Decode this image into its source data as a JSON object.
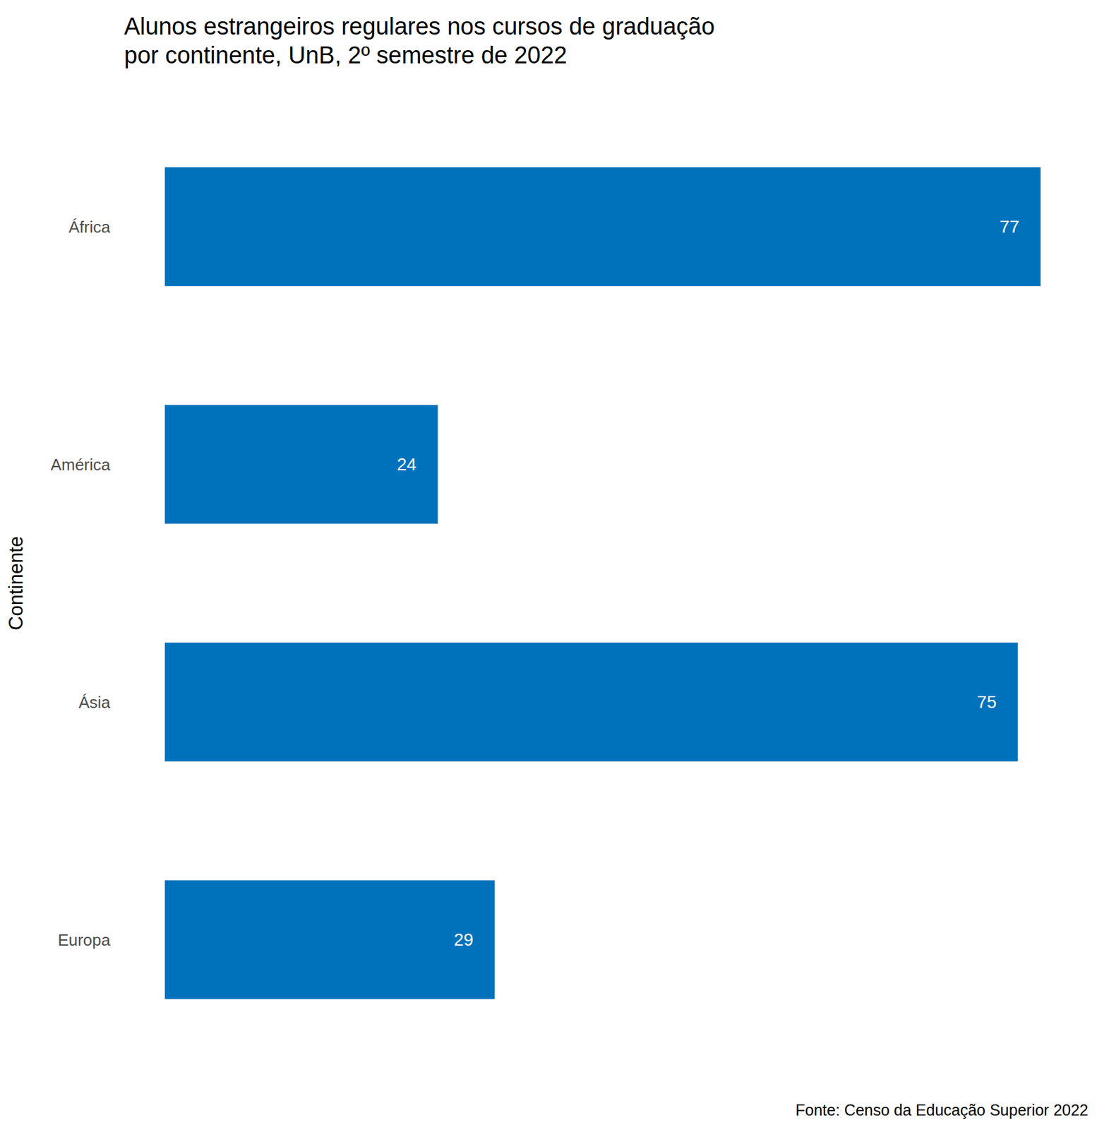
{
  "chart_data": {
    "type": "bar",
    "title": "Alunos estrangeiros regulares nos cursos de graduação\npor continente, UnB, 2º semestre de 2022",
    "y_label": "Continente",
    "caption": "Fonte: Censo da Educação Superior 2022",
    "categories": [
      "África",
      "América",
      "Ásia",
      "Europa"
    ],
    "values": [
      77,
      24,
      75,
      29
    ],
    "color": "#0072bc",
    "orientation": "horizontal",
    "xlim": [
      0,
      77
    ],
    "data_labels": true,
    "tick_labels": "y",
    "grid": false
  }
}
